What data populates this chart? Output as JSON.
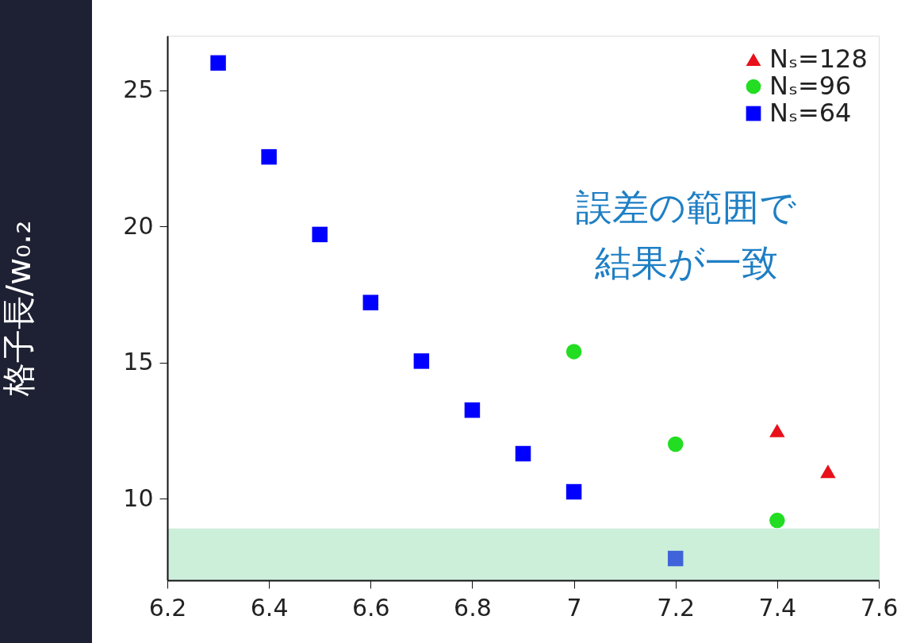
{
  "chart_data": {
    "type": "scatter",
    "ylabel": "格子長/w₀.₂",
    "xlim": [
      6.2,
      7.6
    ],
    "xticks": [
      6.2,
      6.4,
      6.6,
      6.8,
      7,
      7.2,
      7.4,
      7.6
    ],
    "ylim": [
      7,
      27
    ],
    "yticks": [
      10,
      15,
      20,
      25
    ],
    "series": [
      {
        "name": "Nₛ=128",
        "color": "#e8101a",
        "marker": "triangle",
        "x": [
          7.4,
          7.5
        ],
        "values": [
          12.5,
          11.0
        ]
      },
      {
        "name": "Nₛ=96",
        "color": "#22dd22",
        "marker": "circle",
        "x": [
          7.0,
          7.2,
          7.4
        ],
        "values": [
          15.4,
          12.0,
          9.2
        ]
      },
      {
        "name": "Nₛ=64",
        "color": "#0000ff",
        "marker": "square",
        "x": [
          6.3,
          6.4,
          6.5,
          6.6,
          6.7,
          6.8,
          6.9,
          7.0,
          7.2
        ],
        "values": [
          26.0,
          22.55,
          19.7,
          17.2,
          15.05,
          13.25,
          11.65,
          10.25,
          7.8
        ]
      }
    ],
    "bands": [
      {
        "axis": "y",
        "from": 7,
        "to": 8.9,
        "color": "#8fdcae"
      }
    ],
    "annotations": [
      "誤差の範囲で",
      "結果が一致"
    ],
    "legend": "top right",
    "grid": false
  }
}
